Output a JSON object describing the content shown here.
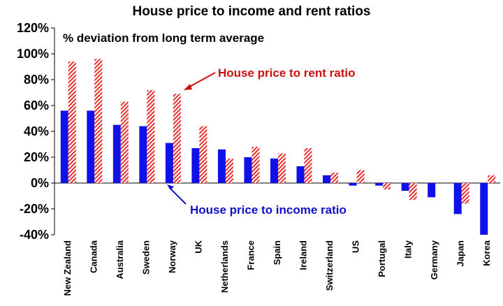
{
  "chart_data": {
    "type": "bar",
    "title": "House price to income and rent ratios",
    "subtitle": "% deviation from long term average",
    "categories": [
      "New Zealand",
      "Canada",
      "Australia",
      "Sweden",
      "Norway",
      "UK",
      "Netherlands",
      "France",
      "Spain",
      "Ireland",
      "Switzerland",
      "US",
      "Portugal",
      "Italy",
      "Germany",
      "Japan",
      "Korea"
    ],
    "series": [
      {
        "name": "House price to income ratio",
        "color": "#1010e8",
        "pattern": "solid",
        "values": [
          56,
          56,
          45,
          44,
          31,
          27,
          26,
          20,
          19,
          13,
          6,
          -2,
          -2,
          -6,
          -11,
          -24,
          -40
        ]
      },
      {
        "name": "House price to rent ratio",
        "color": "#e83030",
        "pattern": "hatched",
        "values": [
          94,
          96,
          63,
          72,
          69,
          44,
          19,
          28,
          23,
          27,
          8,
          10,
          -5,
          -13,
          0,
          -16,
          6
        ]
      }
    ],
    "ylim": [
      -40,
      120
    ],
    "yticks": [
      -40,
      -20,
      0,
      20,
      40,
      60,
      80,
      100,
      120
    ],
    "ytick_labels": [
      "-40%",
      "-20%",
      "0%",
      "20%",
      "40%",
      "60%",
      "80%",
      "100%",
      "120%"
    ],
    "grid": false,
    "annotations": [
      {
        "text": "House price to rent ratio",
        "series": 1,
        "color": "#cc1010"
      },
      {
        "text": "House price to income ratio",
        "series": 0,
        "color": "#1010cc"
      }
    ]
  }
}
